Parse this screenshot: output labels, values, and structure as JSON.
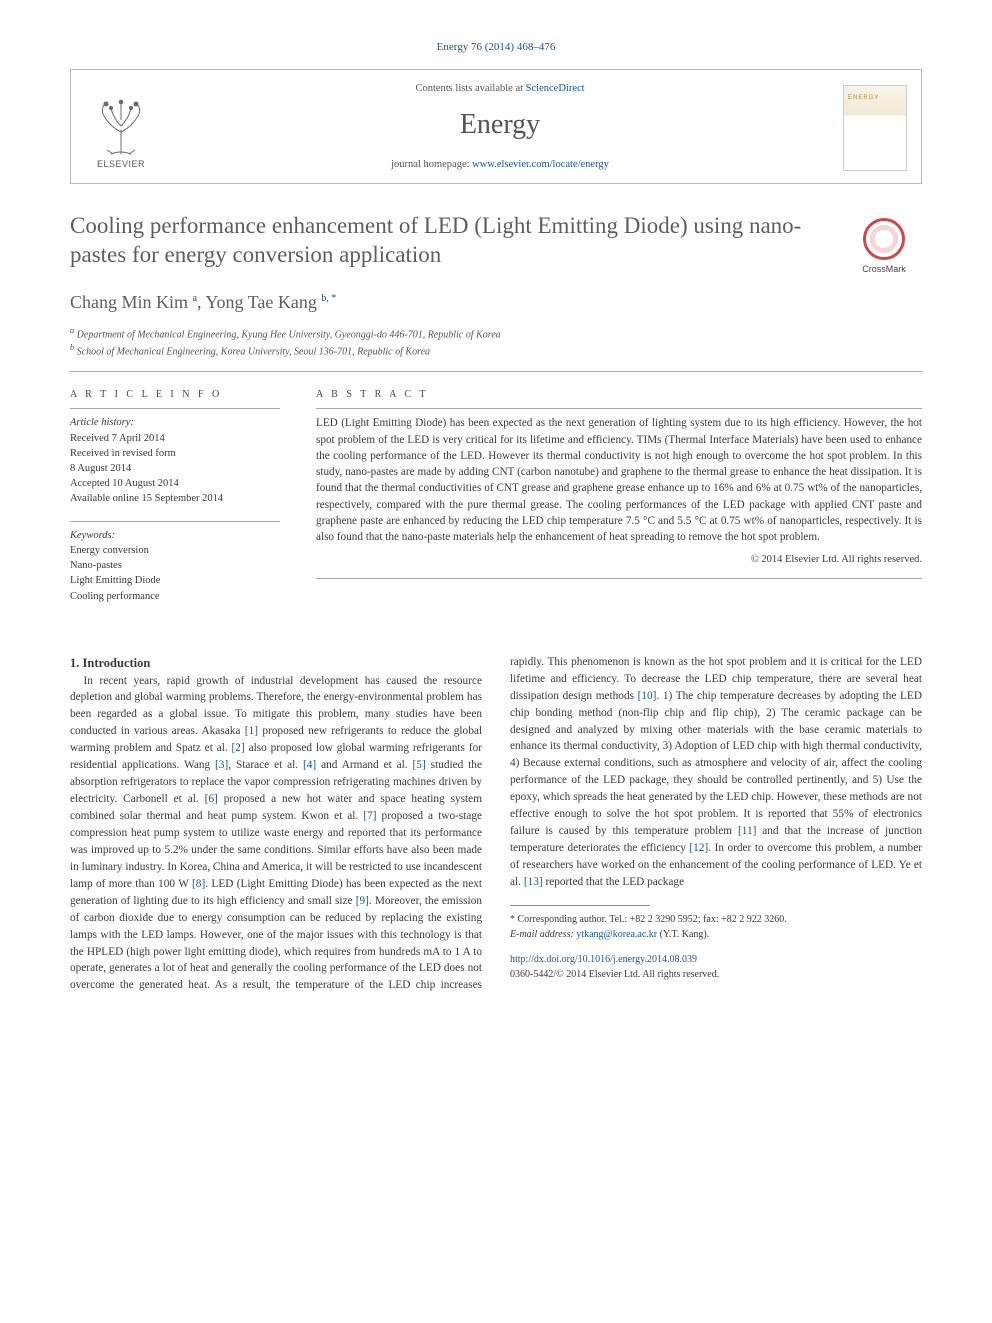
{
  "citation": "Energy 76 (2014) 468–476",
  "header": {
    "publisher": "ELSEVIER",
    "contents_prefix": "Contents lists available at ",
    "contents_link": "ScienceDirect",
    "journal": "Energy",
    "homepage_prefix": "journal homepage: ",
    "homepage_url": "www.elsevier.com/locate/energy",
    "cover_title": "ENERGY"
  },
  "crossmark_label": "CrossMark",
  "title": "Cooling performance enhancement of LED (Light Emitting Diode) using nano-pastes for energy conversion application",
  "authors": {
    "line_html": "Chang Min Kim",
    "a1_name": "Chang Min Kim",
    "a1_sup": "a",
    "a2_name": "Yong Tae Kang",
    "a2_sup": "b, *"
  },
  "affiliations": {
    "a": "Department of Mechanical Engineering, Kyung Hee University, Gyeonggi-do 446-701, Republic of Korea",
    "b": "School of Mechanical Engineering, Korea University, Seoul 136-701, Republic of Korea"
  },
  "info": {
    "heading": "A R T I C L E   I N F O",
    "history_label": "Article history:",
    "history": [
      "Received 7 April 2014",
      "Received in revised form",
      "8 August 2014",
      "Accepted 10 August 2014",
      "Available online 15 September 2014"
    ],
    "keywords_label": "Keywords:",
    "keywords": [
      "Energy conversion",
      "Nano-pastes",
      "Light Emitting Diode",
      "Cooling performance"
    ]
  },
  "abstract": {
    "heading": "A B S T R A C T",
    "text": "LED (Light Emitting Diode) has been expected as the next generation of lighting system due to its high efficiency. However, the hot spot problem of the LED is very critical for its lifetime and efficiency. TIMs (Thermal Interface Materials) have been used to enhance the cooling performance of the LED. However its thermal conductivity is not high enough to overcome the hot spot problem. In this study, nano-pastes are made by adding CNT (carbon nanotube) and graphene to the thermal grease to enhance the heat dissipation. It is found that the thermal conductivities of CNT grease and graphene grease enhance up to 16% and 6% at 0.75 wt% of the nanoparticles, respectively, compared with the pure thermal grease. The cooling performances of the LED package with applied CNT paste and graphene paste are enhanced by reducing the LED chip temperature 7.5 °C and 5.5 °C at 0.75 wt% of nanoparticles, respectively. It is also found that the nano-paste materials help the enhancement of heat spreading to remove the hot spot problem.",
    "copyright": "© 2014 Elsevier Ltd. All rights reserved."
  },
  "intro": {
    "heading": "1.  Introduction",
    "text": "In recent years, rapid growth of industrial development has caused the resource depletion and global warming problems. Therefore, the energy-environmental problem has been regarded as a global issue. To mitigate this problem, many studies have been conducted in various areas. Akasaka [1] proposed new refrigerants to reduce the global warming problem and Spatz et al. [2] also proposed low global warming refrigerants for residential applications. Wang [3], Starace et al. [4] and Armand et al. [5] studied the absorption refrigerators to replace the vapor compression refrigerating machines driven by electricity. Carbonell et al. [6] proposed a new hot water and space heating system combined solar thermal and heat pump system. Kwon et al. [7] proposed a two-stage compression heat pump system to utilize waste energy and reported that its performance was improved up to 5.2% under the same conditions. Similar efforts have also been made in luminary industry. In Korea, China and America, it will be restricted to use incandescent lamp of more than 100 W [8]. LED (Light Emitting Diode) has been expected as the next generation of lighting due to its high efficiency and small size [9]. Moreover, the emission of carbon dioxide due to energy consumption can be reduced by replacing the existing lamps with the LED lamps. However, one of the major issues with this technology is that the HPLED (high power light emitting diode), which requires from hundreds mA to 1 A to operate, generates a lot of heat and generally the cooling performance of the LED does not overcome the generated heat. As a result, the temperature of the LED chip increases rapidly. This phenomenon is known as the hot spot problem and it is critical for the LED lifetime and efficiency. To decrease the LED chip temperature, there are several heat dissipation design methods [10]. 1) The chip temperature decreases by adopting the LED chip bonding method (non-flip chip and flip chip), 2) The ceramic package can be designed and analyzed by mixing other materials with the base ceramic materials to enhance its thermal conductivity, 3) Adoption of LED chip with high thermal conductivity, 4) Because external conditions, such as atmosphere and velocity of air, affect the cooling performance of the LED package, they should be controlled pertinently, and 5) Use the epoxy, which spreads the heat generated by the LED chip. However, these methods are not effective enough to solve the hot spot problem. It is reported that 55% of electronics failure is caused by this temperature problem [11] and that the increase of junction temperature deteriorates the efficiency [12]. In order to overcome this problem, a number of researchers have worked on the enhancement of the cooling performance of LED. Ye et al. [13] reported that the LED package"
  },
  "footnote": {
    "corr": "* Corresponding author. Tel.: +82 2 3290 5952; fax: +82 2 922 3260.",
    "email_label": "E-mail address:",
    "email": "ytkang@korea.ac.kr",
    "email_who": "(Y.T. Kang)."
  },
  "doi": {
    "url": "http://dx.doi.org/10.1016/j.energy.2014.08.039",
    "issn_line": "0360-5442/© 2014 Elsevier Ltd. All rights reserved."
  },
  "colors": {
    "link": "#1a5490",
    "text": "#3a3a3a",
    "heading": "#5e5e5e",
    "rule": "#a8a8a8"
  }
}
